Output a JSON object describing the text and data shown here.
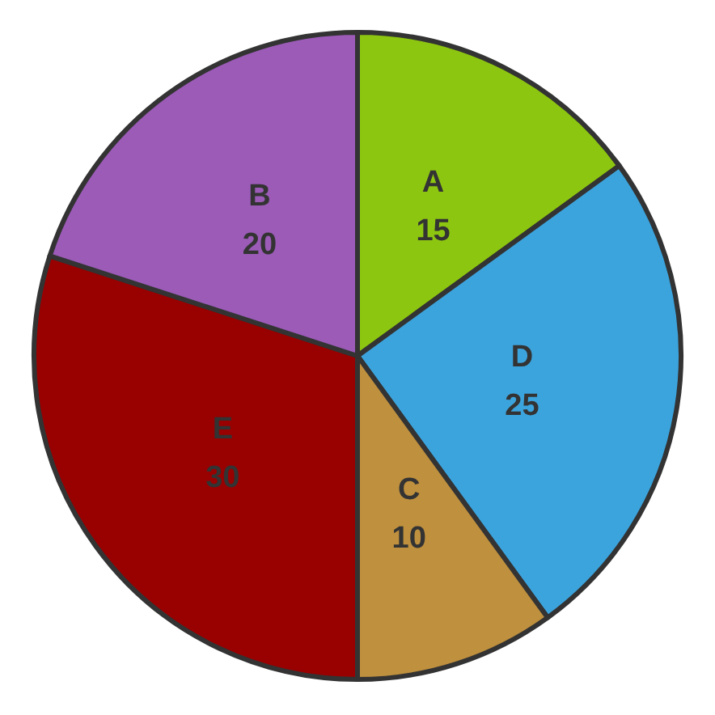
{
  "chart_data": {
    "type": "pie",
    "categories": [
      "A",
      "D",
      "C",
      "E",
      "B"
    ],
    "values": [
      15,
      25,
      10,
      30,
      20
    ],
    "colors": [
      "#8dc610",
      "#3ca4dd",
      "#bf903e",
      "#990000",
      "#9b5bb7"
    ],
    "data_labels": true,
    "legend": false
  }
}
